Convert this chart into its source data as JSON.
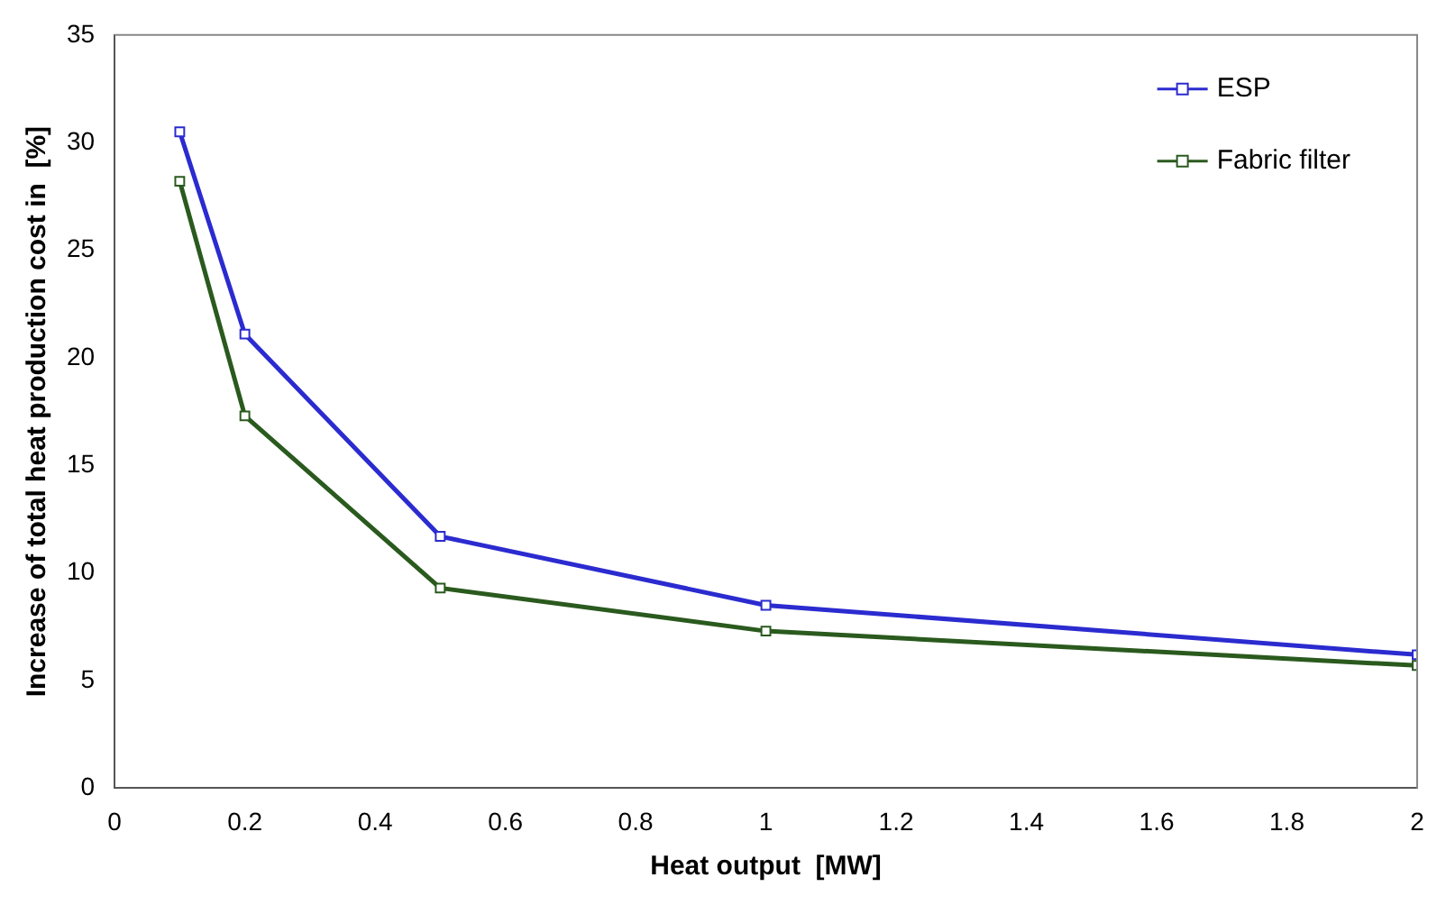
{
  "chart_data": {
    "type": "line",
    "xlabel": "Heat output  [MW]",
    "ylabel": "Increase of total heat production cost in  [%]",
    "x": [
      0.1,
      0.2,
      0.5,
      1,
      2
    ],
    "series": [
      {
        "name": "ESP",
        "color": "#2b2bd0",
        "values": [
          30.5,
          21.1,
          11.7,
          8.5,
          6.2
        ]
      },
      {
        "name": "Fabric filter",
        "color": "#2a5a1e",
        "values": [
          28.2,
          17.3,
          9.3,
          7.3,
          5.7
        ]
      }
    ],
    "xlim": [
      0,
      2
    ],
    "xticks": [
      0,
      0.2,
      0.4,
      0.6,
      0.8,
      1,
      1.2,
      1.4,
      1.6,
      1.8,
      2
    ],
    "ylim": [
      0,
      35
    ],
    "yticks": [
      0,
      5,
      10,
      15,
      20,
      25,
      30,
      35
    ],
    "legend": "top right",
    "marker": "square",
    "line_style": "solid"
  }
}
